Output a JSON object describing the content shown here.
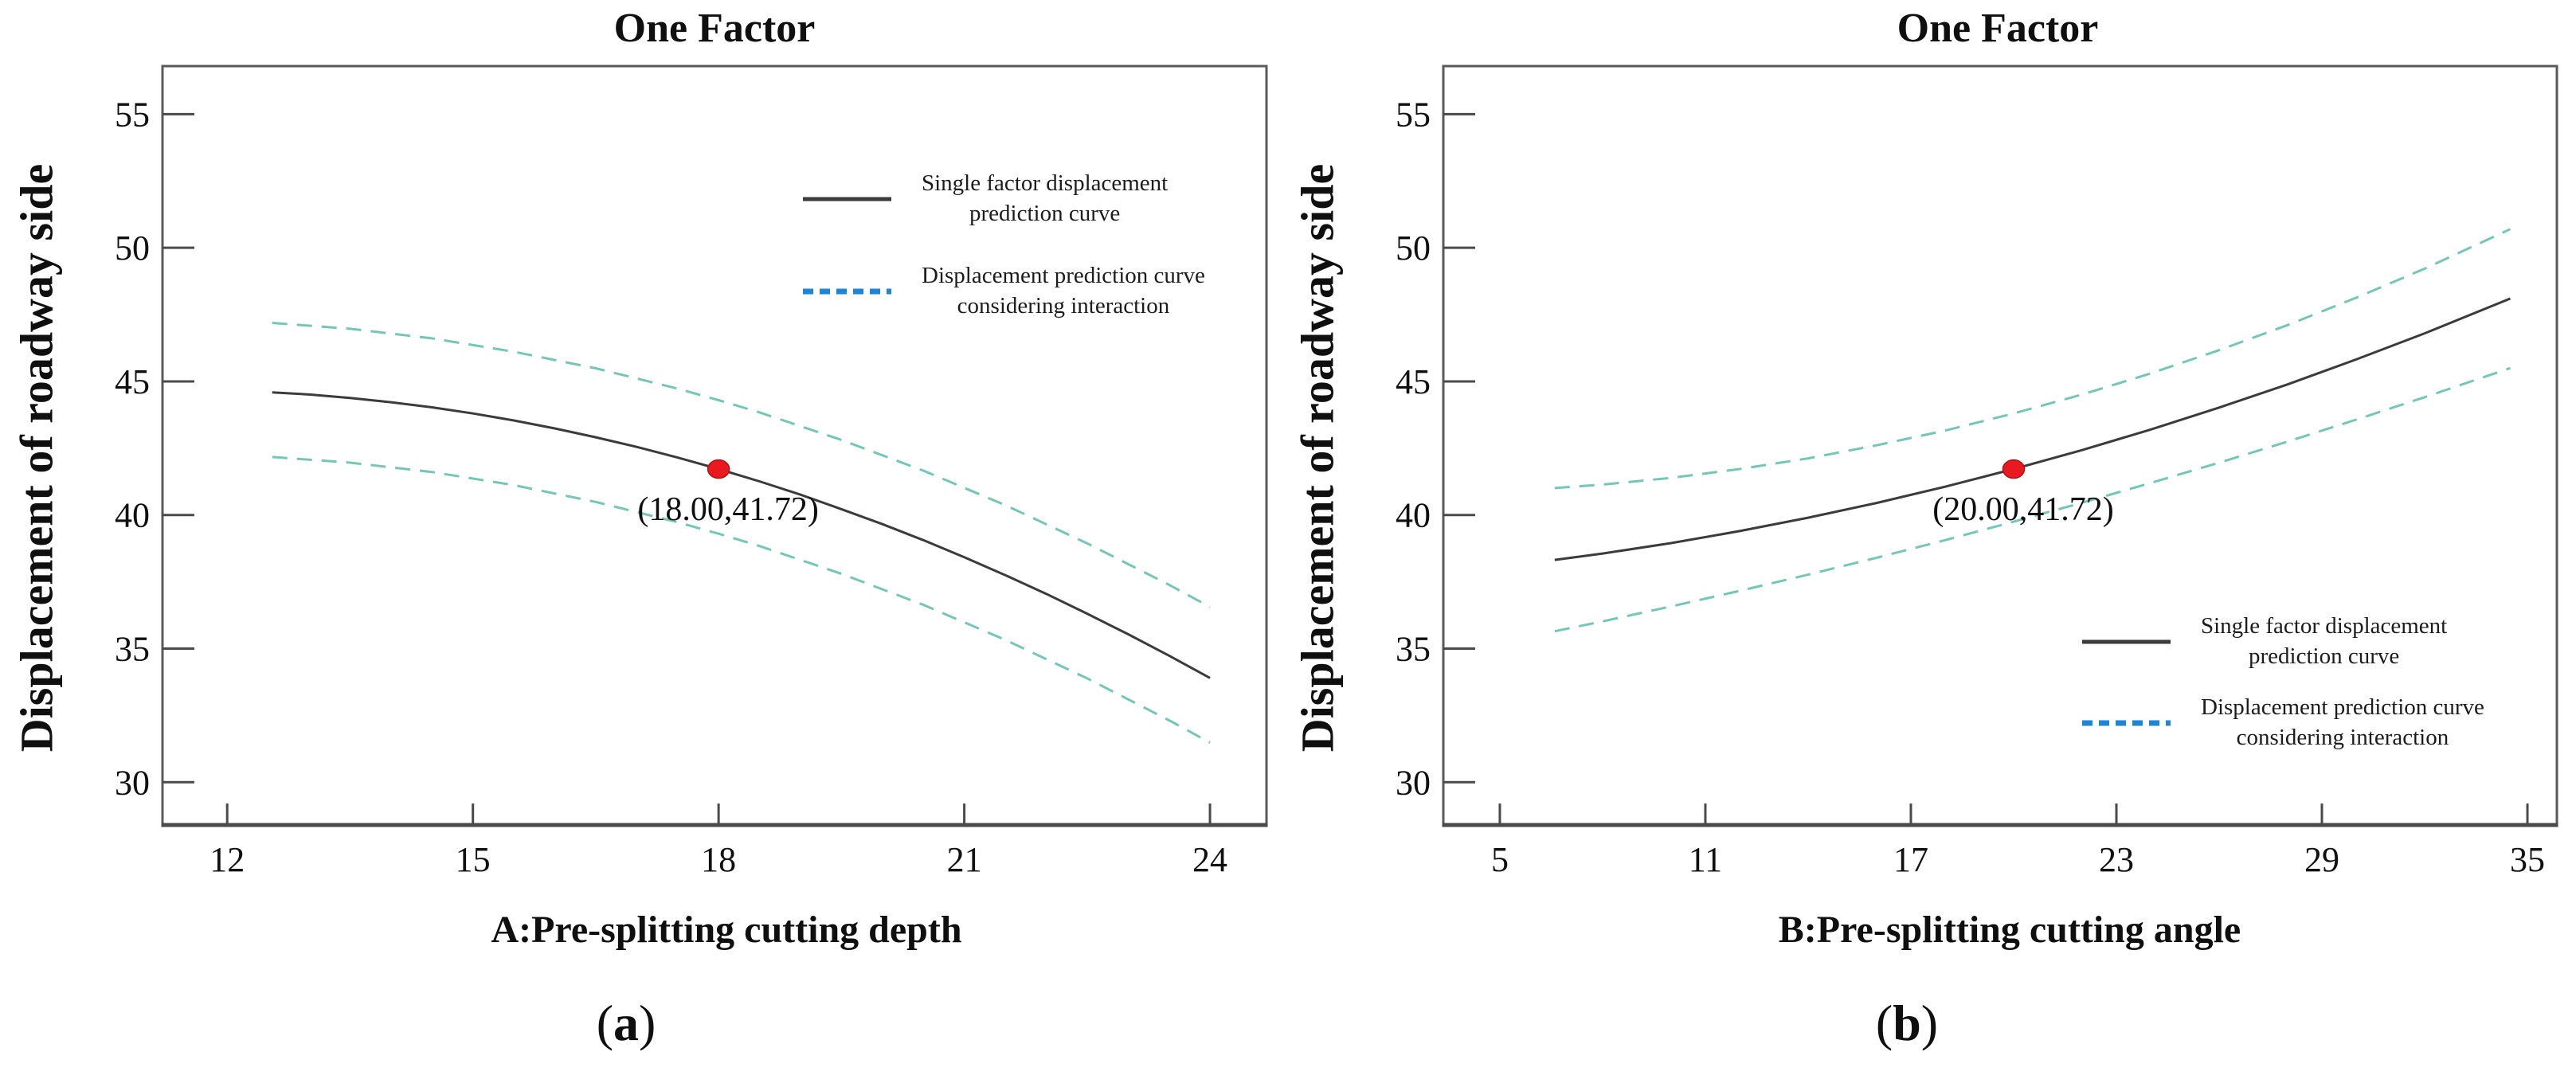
{
  "colors": {
    "solid_curve": "#3b3b3b",
    "interaction_band_dash": "#74c7b8",
    "legend_dash_blue": "#1e86d6",
    "marker_red": "#e8191f",
    "axis": "#5a5a5a",
    "text": "#0f0f0f"
  },
  "chart_data": [
    {
      "id": "a",
      "type": "line",
      "title": "One Factor",
      "xlabel": "A:Pre-splitting cutting depth",
      "ylabel": "Displacement of roadway side",
      "caption": {
        "open": "(",
        "letter": "a",
        "close": ")"
      },
      "x_ticks": [
        12,
        15,
        18,
        21,
        24
      ],
      "y_ticks": [
        30,
        35,
        40,
        45,
        50,
        55
      ],
      "x_domain": [
        11.21,
        24.69
      ],
      "y_domain": [
        28.4,
        56.8
      ],
      "grid": false,
      "legend_position": "top-right",
      "series": [
        {
          "name": "Single factor displacement prediction curve",
          "style": "solid",
          "color": "#3b3b3b",
          "points": [
            [
              12.55,
              44.59
            ],
            [
              13.0,
              44.51
            ],
            [
              13.5,
              44.38
            ],
            [
              14.0,
              44.22
            ],
            [
              14.5,
              44.03
            ],
            [
              15.0,
              43.8
            ],
            [
              15.5,
              43.54
            ],
            [
              16.0,
              43.24
            ],
            [
              16.5,
              42.91
            ],
            [
              17.0,
              42.55
            ],
            [
              17.5,
              42.15
            ],
            [
              18.0,
              41.72
            ],
            [
              18.5,
              41.26
            ],
            [
              19.0,
              40.76
            ],
            [
              19.5,
              40.22
            ],
            [
              20.0,
              39.66
            ],
            [
              20.5,
              39.06
            ],
            [
              21.0,
              38.42
            ],
            [
              21.5,
              37.75
            ],
            [
              22.0,
              37.05
            ],
            [
              22.5,
              36.31
            ],
            [
              23.0,
              35.54
            ],
            [
              23.5,
              34.74
            ],
            [
              24.0,
              33.9
            ]
          ]
        },
        {
          "name": "Displacement prediction curve considering interaction (upper band)",
          "style": "dashed",
          "color": "#74c7b8",
          "points": [
            [
              12.55,
              47.19
            ],
            [
              13.5,
              46.97
            ],
            [
              14.5,
              46.61
            ],
            [
              15.5,
              46.11
            ],
            [
              16.5,
              45.49
            ],
            [
              17.5,
              44.73
            ],
            [
              18.0,
              44.3
            ],
            [
              18.5,
              43.84
            ],
            [
              19.5,
              42.81
            ],
            [
              20.5,
              41.66
            ],
            [
              21.5,
              40.37
            ],
            [
              22.5,
              38.94
            ],
            [
              23.5,
              37.39
            ],
            [
              24.0,
              36.56
            ]
          ]
        },
        {
          "name": "Displacement prediction curve considering interaction (lower band)",
          "style": "dashed",
          "color": "#74c7b8",
          "points": [
            [
              12.55,
              42.17
            ],
            [
              13.5,
              41.96
            ],
            [
              14.5,
              41.61
            ],
            [
              15.5,
              41.12
            ],
            [
              16.5,
              40.49
            ],
            [
              17.5,
              39.73
            ],
            [
              18.0,
              39.3
            ],
            [
              18.5,
              38.84
            ],
            [
              19.5,
              37.8
            ],
            [
              20.5,
              36.64
            ],
            [
              21.5,
              35.33
            ],
            [
              22.5,
              33.89
            ],
            [
              23.5,
              32.32
            ],
            [
              24.0,
              31.48
            ]
          ]
        }
      ],
      "marker": {
        "x": 18.0,
        "y": 41.72,
        "label": "(18.00,41.72)",
        "color": "#e8191f"
      },
      "legend": {
        "entries": [
          {
            "line1": "Single factor displacement",
            "line2": "prediction curve",
            "style": "solid",
            "color": "#3b3b3b"
          },
          {
            "line1": "Displacement prediction curve",
            "line2": "considering interaction",
            "style": "dashed",
            "color": "#1e86d6"
          }
        ]
      }
    },
    {
      "id": "b",
      "type": "line",
      "title": "One Factor",
      "xlabel": "B:Pre-splitting cutting angle",
      "ylabel": "Displacement of roadway side",
      "caption": {
        "open": "(",
        "letter": "b",
        "close": ")"
      },
      "x_ticks": [
        5,
        11,
        17,
        23,
        29,
        35
      ],
      "y_ticks": [
        30,
        35,
        40,
        45,
        50,
        55
      ],
      "x_domain": [
        3.35,
        35.86
      ],
      "y_domain": [
        28.4,
        56.8
      ],
      "grid": false,
      "legend_position": "bottom-right",
      "series": [
        {
          "name": "Single factor displacement prediction curve",
          "style": "solid",
          "color": "#3b3b3b",
          "points": [
            [
              6.6,
              38.32
            ],
            [
              8,
              38.56
            ],
            [
              10,
              38.95
            ],
            [
              12,
              39.4
            ],
            [
              14,
              39.9
            ],
            [
              16,
              40.45
            ],
            [
              18,
              41.06
            ],
            [
              20,
              41.72
            ],
            [
              22,
              42.43
            ],
            [
              24,
              43.2
            ],
            [
              26,
              44.02
            ],
            [
              28,
              44.89
            ],
            [
              30,
              45.82
            ],
            [
              32,
              46.8
            ],
            [
              34.5,
              48.1
            ]
          ]
        },
        {
          "name": "Displacement prediction curve considering interaction (upper band)",
          "style": "dashed",
          "color": "#74c7b8",
          "points": [
            [
              6.6,
              41.01
            ],
            [
              8,
              41.14
            ],
            [
              10,
              41.39
            ],
            [
              12,
              41.72
            ],
            [
              14,
              42.12
            ],
            [
              16,
              42.61
            ],
            [
              18,
              43.16
            ],
            [
              20,
              43.8
            ],
            [
              22,
              44.51
            ],
            [
              24,
              45.3
            ],
            [
              26,
              46.17
            ],
            [
              28,
              47.11
            ],
            [
              30,
              48.13
            ],
            [
              32,
              49.22
            ],
            [
              34.5,
              50.7
            ]
          ]
        },
        {
          "name": "Displacement prediction curve considering interaction (lower band)",
          "style": "dashed",
          "color": "#74c7b8",
          "points": [
            [
              6.6,
              35.65
            ],
            [
              8,
              36.02
            ],
            [
              10,
              36.58
            ],
            [
              12,
              37.16
            ],
            [
              14,
              37.77
            ],
            [
              16,
              38.4
            ],
            [
              18,
              39.06
            ],
            [
              20,
              39.75
            ],
            [
              22,
              40.46
            ],
            [
              24,
              41.2
            ],
            [
              26,
              41.96
            ],
            [
              28,
              42.75
            ],
            [
              30,
              43.57
            ],
            [
              32,
              44.41
            ],
            [
              34.5,
              45.5
            ]
          ]
        }
      ],
      "marker": {
        "x": 20.0,
        "y": 41.72,
        "label": "(20.00,41.72)",
        "color": "#e8191f"
      },
      "legend": {
        "entries": [
          {
            "line1": "Single factor displacement",
            "line2": "prediction curve",
            "style": "solid",
            "color": "#3b3b3b"
          },
          {
            "line1": "Displacement prediction curve",
            "line2": "considering interaction",
            "style": "dashed",
            "color": "#1e86d6"
          }
        ]
      }
    }
  ]
}
